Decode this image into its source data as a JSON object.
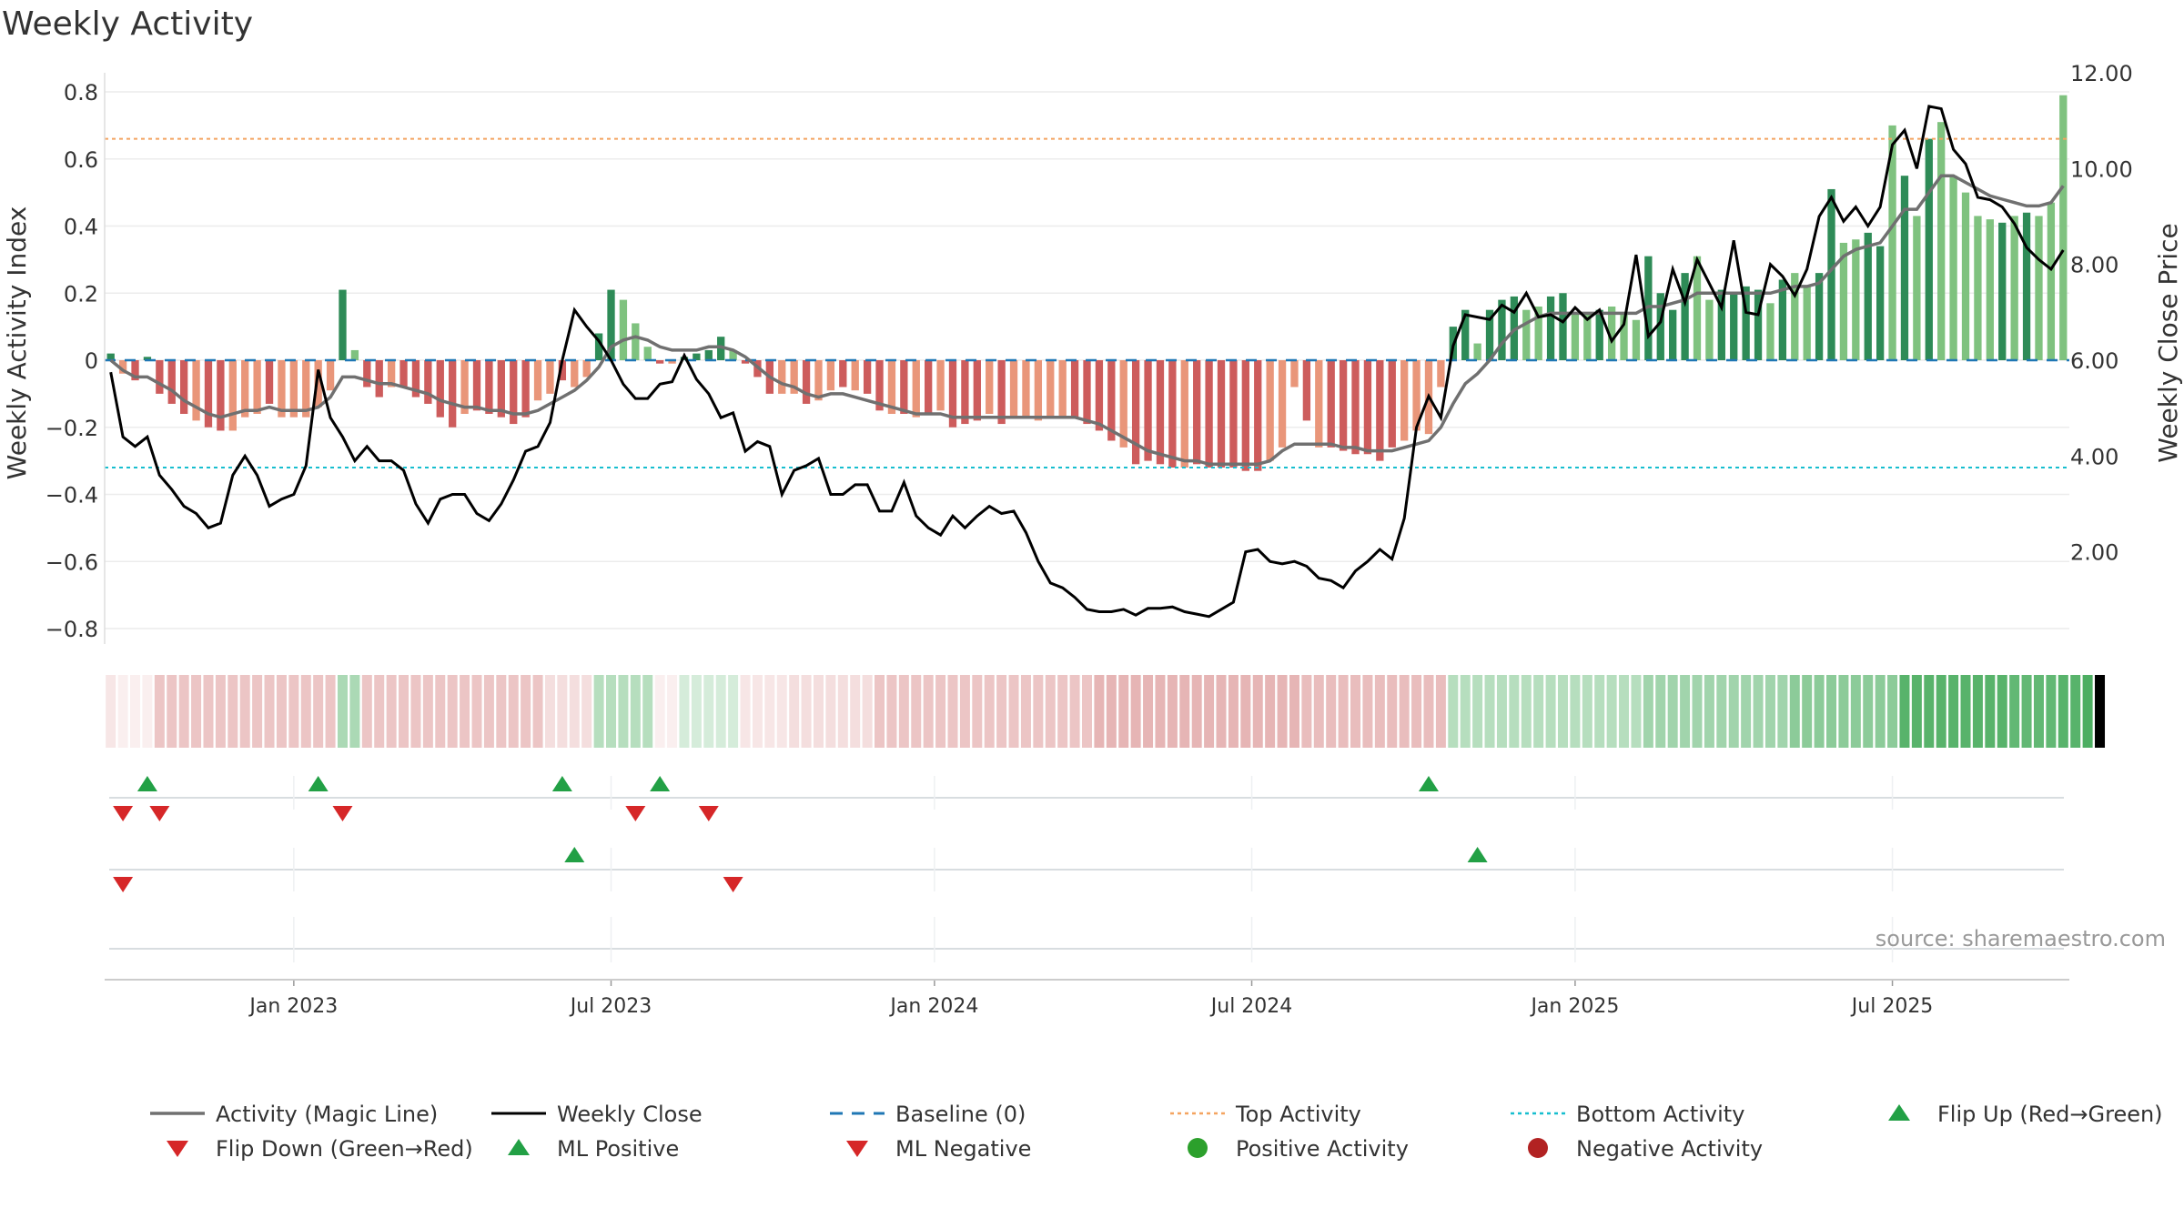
{
  "title": "Weekly Activity",
  "source": "source: sharemaestro.com",
  "colors": {
    "strong_green": "#2e8b57",
    "light_green": "#7fc27f",
    "strong_red": "#cd5c5c",
    "light_red": "#e9967a",
    "magic_line": "#707070",
    "close_line": "#000000",
    "baseline": "#1f77b4",
    "top_activity": "#f4a460",
    "bottom_activity": "#17becf",
    "marker_up": "#22a045",
    "marker_down": "#d62728",
    "positive_dot": "#2ca02c",
    "negative_dot": "#b22222"
  },
  "chart_data": {
    "type": "bar",
    "title": "Weekly Activity",
    "ylabel_left": "Weekly Activity Index",
    "ylabel_right": "Weekly Close Price",
    "ylim_left": [
      -0.85,
      0.85
    ],
    "ylim_right": [
      0.46,
      12.3
    ],
    "yticks_left": [
      "0.8",
      "0.6",
      "0.4",
      "0.2",
      "0",
      "−0.2",
      "−0.4",
      "−0.6",
      "−0.8"
    ],
    "yticks_left_values": [
      0.8,
      0.6,
      0.4,
      0.2,
      0,
      -0.2,
      -0.4,
      -0.6,
      -0.8
    ],
    "yticks_right": [
      "12.00",
      "10.00",
      "8.00",
      "6.00",
      "4.00",
      "2.00"
    ],
    "yticks_right_values": [
      12,
      10,
      8,
      6,
      4,
      2
    ],
    "xticks": [
      "Jan 2023",
      "Jul 2023",
      "Jan 2024",
      "Jul 2024",
      "Jan 2025",
      "Jul 2025"
    ],
    "xticks_week_index": [
      15,
      41,
      67.5,
      93.5,
      120,
      146
    ],
    "top_activity": 0.66,
    "bottom_activity": -0.32,
    "baseline": 0,
    "activity": [
      0.02,
      -0.04,
      -0.06,
      0.01,
      -0.1,
      -0.13,
      -0.16,
      -0.18,
      -0.2,
      -0.21,
      -0.21,
      -0.17,
      -0.16,
      -0.13,
      -0.17,
      -0.17,
      -0.17,
      -0.14,
      -0.09,
      0.21,
      0.03,
      -0.08,
      -0.11,
      -0.08,
      -0.08,
      -0.11,
      -0.13,
      -0.17,
      -0.2,
      -0.16,
      -0.15,
      -0.16,
      -0.17,
      -0.19,
      -0.17,
      -0.12,
      -0.1,
      -0.06,
      -0.08,
      -0.05,
      0.08,
      0.21,
      0.18,
      0.11,
      0.04,
      -0.01,
      -0.01,
      0.01,
      0.02,
      0.03,
      0.07,
      0.03,
      -0.01,
      -0.05,
      -0.1,
      -0.1,
      -0.1,
      -0.13,
      -0.12,
      -0.09,
      -0.08,
      -0.09,
      -0.1,
      -0.15,
      -0.16,
      -0.16,
      -0.17,
      -0.16,
      -0.15,
      -0.2,
      -0.19,
      -0.18,
      -0.16,
      -0.19,
      -0.17,
      -0.17,
      -0.18,
      -0.17,
      -0.17,
      -0.17,
      -0.19,
      -0.21,
      -0.24,
      -0.26,
      -0.31,
      -0.3,
      -0.31,
      -0.32,
      -0.32,
      -0.31,
      -0.32,
      -0.32,
      -0.32,
      -0.33,
      -0.33,
      -0.3,
      -0.26,
      -0.08,
      -0.18,
      -0.26,
      -0.26,
      -0.27,
      -0.28,
      -0.28,
      -0.3,
      -0.26,
      -0.24,
      -0.21,
      -0.22,
      -0.08,
      0.1,
      0.15,
      0.05,
      0.15,
      0.18,
      0.19,
      0.15,
      0.16,
      0.19,
      0.2,
      0.14,
      0.14,
      0.15,
      0.16,
      0.14,
      0.12,
      0.31,
      0.2,
      0.15,
      0.26,
      0.31,
      0.18,
      0.21,
      0.2,
      0.22,
      0.21,
      0.17,
      0.24,
      0.26,
      0.22,
      0.26,
      0.51,
      0.35,
      0.36,
      0.38,
      0.34,
      0.7,
      0.55,
      0.43,
      0.66,
      0.71,
      0.55,
      0.5,
      0.43,
      0.42,
      0.41,
      0.43,
      0.44,
      0.43,
      0.47,
      0.79
    ],
    "activity_strength": [
      "strong",
      "light",
      "strong",
      "strong",
      "strong",
      "strong",
      "strong",
      "light",
      "strong",
      "strong",
      "light",
      "light",
      "light",
      "strong",
      "light",
      "light",
      "light",
      "light",
      "light",
      "strong",
      "light",
      "strong",
      "strong",
      "light",
      "strong",
      "strong",
      "strong",
      "strong",
      "strong",
      "light",
      "strong",
      "strong",
      "strong",
      "strong",
      "strong",
      "light",
      "light",
      "strong",
      "light",
      "light",
      "strong",
      "strong",
      "light",
      "light",
      "light",
      "strong",
      "light",
      "strong",
      "strong",
      "strong",
      "strong",
      "light",
      "strong",
      "strong",
      "strong",
      "light",
      "light",
      "strong",
      "light",
      "light",
      "strong",
      "light",
      "strong",
      "strong",
      "light",
      "strong",
      "light",
      "strong",
      "light",
      "strong",
      "strong",
      "strong",
      "light",
      "strong",
      "light",
      "light",
      "light",
      "light",
      "light",
      "strong",
      "strong",
      "strong",
      "strong",
      "light",
      "strong",
      "strong",
      "strong",
      "strong",
      "light",
      "strong",
      "strong",
      "strong",
      "strong",
      "strong",
      "strong",
      "light",
      "light",
      "light",
      "strong",
      "light",
      "strong",
      "strong",
      "strong",
      "strong",
      "strong",
      "strong",
      "light",
      "light",
      "light",
      "light",
      "strong",
      "strong",
      "light",
      "strong",
      "strong",
      "strong",
      "light",
      "light",
      "strong",
      "strong",
      "light",
      "light",
      "strong",
      "light",
      "light",
      "light",
      "strong",
      "strong",
      "strong",
      "strong",
      "light",
      "light",
      "strong",
      "strong",
      "strong",
      "strong",
      "light",
      "strong",
      "light",
      "light",
      "strong",
      "strong",
      "light",
      "light",
      "strong",
      "strong",
      "light",
      "strong",
      "light",
      "strong",
      "light",
      "light",
      "light",
      "light",
      "light",
      "strong",
      "light",
      "strong"
    ],
    "magic_line": [
      0.0,
      -0.03,
      -0.05,
      -0.05,
      -0.07,
      -0.09,
      -0.12,
      -0.14,
      -0.16,
      -0.17,
      -0.16,
      -0.15,
      -0.15,
      -0.14,
      -0.15,
      -0.15,
      -0.15,
      -0.14,
      -0.11,
      -0.05,
      -0.05,
      -0.06,
      -0.07,
      -0.07,
      -0.08,
      -0.09,
      -0.1,
      -0.12,
      -0.13,
      -0.14,
      -0.14,
      -0.15,
      -0.15,
      -0.16,
      -0.16,
      -0.15,
      -0.13,
      -0.11,
      -0.09,
      -0.06,
      -0.02,
      0.04,
      0.06,
      0.07,
      0.06,
      0.04,
      0.03,
      0.03,
      0.03,
      0.04,
      0.04,
      0.03,
      0.01,
      -0.02,
      -0.05,
      -0.07,
      -0.08,
      -0.1,
      -0.11,
      -0.1,
      -0.1,
      -0.11,
      -0.12,
      -0.13,
      -0.14,
      -0.15,
      -0.16,
      -0.16,
      -0.16,
      -0.17,
      -0.17,
      -0.17,
      -0.17,
      -0.17,
      -0.17,
      -0.17,
      -0.17,
      -0.17,
      -0.17,
      -0.17,
      -0.18,
      -0.19,
      -0.21,
      -0.23,
      -0.25,
      -0.27,
      -0.28,
      -0.29,
      -0.3,
      -0.3,
      -0.31,
      -0.31,
      -0.31,
      -0.31,
      -0.31,
      -0.3,
      -0.27,
      -0.25,
      -0.25,
      -0.25,
      -0.25,
      -0.26,
      -0.26,
      -0.27,
      -0.27,
      -0.27,
      -0.26,
      -0.25,
      -0.24,
      -0.2,
      -0.13,
      -0.07,
      -0.04,
      0.0,
      0.05,
      0.09,
      0.11,
      0.13,
      0.14,
      0.14,
      0.14,
      0.14,
      0.14,
      0.14,
      0.14,
      0.14,
      0.16,
      0.16,
      0.17,
      0.18,
      0.2,
      0.2,
      0.2,
      0.2,
      0.2,
      0.2,
      0.2,
      0.21,
      0.22,
      0.22,
      0.23,
      0.27,
      0.31,
      0.33,
      0.34,
      0.35,
      0.4,
      0.45,
      0.45,
      0.5,
      0.55,
      0.55,
      0.53,
      0.51,
      0.49,
      0.48,
      0.47,
      0.46,
      0.46,
      0.47,
      0.52
    ],
    "weekly_close": [
      5.75,
      4.4,
      4.2,
      4.4,
      3.6,
      3.3,
      2.95,
      2.8,
      2.5,
      2.6,
      3.6,
      4.0,
      3.6,
      2.95,
      3.1,
      3.2,
      3.8,
      5.8,
      4.8,
      4.4,
      3.9,
      4.2,
      3.9,
      3.9,
      3.7,
      3.0,
      2.6,
      3.1,
      3.2,
      3.2,
      2.8,
      2.65,
      3.0,
      3.5,
      4.1,
      4.2,
      4.7,
      6.0,
      7.05,
      6.7,
      6.4,
      6.0,
      5.5,
      5.2,
      5.2,
      5.5,
      5.55,
      6.1,
      5.6,
      5.3,
      4.8,
      4.9,
      4.1,
      4.3,
      4.2,
      3.2,
      3.7,
      3.8,
      3.95,
      3.2,
      3.2,
      3.4,
      3.4,
      2.85,
      2.85,
      3.45,
      2.75,
      2.5,
      2.35,
      2.75,
      2.5,
      2.75,
      2.95,
      2.8,
      2.85,
      2.4,
      1.8,
      1.35,
      1.25,
      1.05,
      0.8,
      0.75,
      0.75,
      0.8,
      0.68,
      0.82,
      0.82,
      0.85,
      0.75,
      0.7,
      0.65,
      0.8,
      0.95,
      2.0,
      2.05,
      1.8,
      1.75,
      1.8,
      1.7,
      1.45,
      1.4,
      1.25,
      1.6,
      1.8,
      2.05,
      1.85,
      2.7,
      4.6,
      5.25,
      4.8,
      6.3,
      6.95,
      6.9,
      6.85,
      7.15,
      7.0,
      7.4,
      6.9,
      6.95,
      6.8,
      7.1,
      6.85,
      7.05,
      6.4,
      6.75,
      8.2,
      6.5,
      6.8,
      7.9,
      7.2,
      8.1,
      7.6,
      7.1,
      8.5,
      7.0,
      6.95,
      8.0,
      7.75,
      7.35,
      7.9,
      9.0,
      9.4,
      8.9,
      9.2,
      8.8,
      9.2,
      10.5,
      10.8,
      10.0,
      11.3,
      11.25,
      10.4,
      10.1,
      9.4,
      9.35,
      9.2,
      8.85,
      8.35,
      8.1,
      7.9,
      8.3
    ]
  },
  "color_strip": {
    "sign": [
      "neg",
      "neg",
      "neg",
      "neg",
      "neg",
      "neg",
      "neg",
      "neg",
      "neg",
      "neg",
      "neg",
      "neg",
      "neg",
      "neg",
      "neg",
      "neg",
      "neg",
      "neg",
      "neg",
      "pos",
      "pos",
      "neg",
      "neg",
      "neg",
      "neg",
      "neg",
      "neg",
      "neg",
      "neg",
      "neg",
      "neg",
      "neg",
      "neg",
      "neg",
      "neg",
      "neg",
      "neg",
      "neg",
      "neg",
      "neg",
      "pos",
      "pos",
      "pos",
      "pos",
      "pos",
      "neg",
      "neg",
      "pos",
      "pos",
      "pos",
      "pos",
      "pos",
      "neg",
      "neg",
      "neg",
      "neg",
      "neg",
      "neg",
      "neg",
      "neg",
      "neg",
      "neg",
      "neg",
      "neg",
      "neg",
      "neg",
      "neg",
      "neg",
      "neg",
      "neg",
      "neg",
      "neg",
      "neg",
      "neg",
      "neg",
      "neg",
      "neg",
      "neg",
      "neg",
      "neg",
      "neg",
      "neg",
      "neg",
      "neg",
      "neg",
      "neg",
      "neg",
      "neg",
      "neg",
      "neg",
      "neg",
      "neg",
      "neg",
      "neg",
      "neg",
      "neg",
      "neg",
      "neg",
      "neg",
      "neg",
      "neg",
      "neg",
      "neg",
      "neg",
      "neg",
      "neg",
      "neg",
      "neg",
      "neg",
      "neg",
      "pos",
      "pos",
      "pos",
      "pos",
      "pos",
      "pos",
      "pos",
      "pos",
      "pos",
      "pos",
      "pos",
      "pos",
      "pos",
      "pos",
      "pos",
      "pos",
      "pos",
      "pos",
      "pos",
      "pos",
      "pos",
      "pos",
      "pos",
      "pos",
      "pos",
      "pos",
      "pos",
      "pos",
      "pos",
      "pos",
      "pos",
      "pos",
      "pos",
      "pos",
      "pos",
      "pos",
      "pos",
      "pos",
      "pos",
      "pos",
      "pos",
      "pos",
      "pos",
      "pos",
      "pos",
      "pos",
      "pos",
      "pos",
      "pos",
      "pos",
      "pos",
      "pos",
      "pos",
      "pos"
    ],
    "intensity": [
      0.15,
      0.1,
      0.1,
      0.1,
      0.35,
      0.35,
      0.35,
      0.35,
      0.35,
      0.35,
      0.35,
      0.35,
      0.35,
      0.35,
      0.35,
      0.35,
      0.35,
      0.35,
      0.35,
      0.4,
      0.4,
      0.35,
      0.35,
      0.35,
      0.35,
      0.35,
      0.35,
      0.35,
      0.35,
      0.35,
      0.35,
      0.35,
      0.35,
      0.35,
      0.35,
      0.35,
      0.2,
      0.2,
      0.2,
      0.2,
      0.35,
      0.35,
      0.35,
      0.35,
      0.35,
      0.1,
      0.1,
      0.2,
      0.2,
      0.2,
      0.2,
      0.2,
      0.15,
      0.15,
      0.15,
      0.15,
      0.2,
      0.2,
      0.2,
      0.2,
      0.2,
      0.2,
      0.2,
      0.35,
      0.35,
      0.35,
      0.35,
      0.35,
      0.35,
      0.35,
      0.35,
      0.35,
      0.35,
      0.35,
      0.35,
      0.35,
      0.35,
      0.35,
      0.35,
      0.35,
      0.35,
      0.45,
      0.45,
      0.45,
      0.45,
      0.45,
      0.45,
      0.45,
      0.45,
      0.45,
      0.45,
      0.45,
      0.45,
      0.45,
      0.45,
      0.45,
      0.45,
      0.45,
      0.4,
      0.4,
      0.4,
      0.4,
      0.4,
      0.4,
      0.4,
      0.4,
      0.4,
      0.4,
      0.4,
      0.4,
      0.35,
      0.35,
      0.35,
      0.35,
      0.35,
      0.35,
      0.35,
      0.35,
      0.35,
      0.35,
      0.35,
      0.35,
      0.35,
      0.35,
      0.35,
      0.35,
      0.45,
      0.45,
      0.45,
      0.45,
      0.45,
      0.45,
      0.45,
      0.45,
      0.45,
      0.45,
      0.45,
      0.45,
      0.55,
      0.55,
      0.55,
      0.55,
      0.55,
      0.55,
      0.55,
      0.55,
      0.55,
      0.8,
      0.8,
      0.8,
      0.8,
      0.8,
      0.8,
      0.8,
      0.8,
      0.8,
      0.75,
      0.75,
      0.75,
      0.75,
      0.8,
      0.8,
      0.85
    ]
  },
  "signals": {
    "flip_up": [
      3,
      17,
      37,
      45,
      108
    ],
    "flip_down": [
      1,
      4,
      19,
      43,
      49
    ],
    "ml_positive": [
      38,
      112
    ],
    "ml_negative": [
      1,
      51
    ]
  },
  "legend": [
    {
      "label": "Activity (Magic Line)",
      "symbol": "line-solid-gray"
    },
    {
      "label": "Weekly Close",
      "symbol": "line-solid-black"
    },
    {
      "label": "Baseline (0)",
      "symbol": "line-dashed-blue"
    },
    {
      "label": "Top Activity",
      "symbol": "line-dotted-orange"
    },
    {
      "label": "Bottom Activity",
      "symbol": "line-dotted-cyan"
    },
    {
      "label": "Flip Up (Red→Green)",
      "symbol": "triangle-up-green"
    },
    {
      "label": "Flip Down (Green→Red)",
      "symbol": "triangle-down-red"
    },
    {
      "label": "ML Positive",
      "symbol": "triangle-up-green"
    },
    {
      "label": "ML Negative",
      "symbol": "triangle-down-red"
    },
    {
      "label": "Positive Activity",
      "symbol": "dot-green"
    },
    {
      "label": "Negative Activity",
      "symbol": "dot-red"
    }
  ]
}
